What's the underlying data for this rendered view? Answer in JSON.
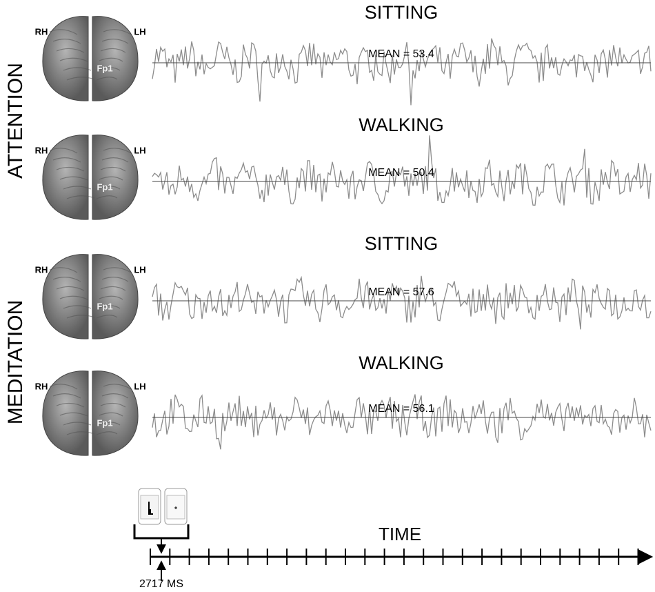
{
  "row_labels": [
    "ATTENTION",
    "MEDITATION"
  ],
  "brain": {
    "left_label": "RH",
    "right_label": "LH",
    "electrode": "Fp1"
  },
  "panels": [
    {
      "title": "SITTING",
      "mean_label": "MEAN = 53.4"
    },
    {
      "title": "WALKING",
      "mean_label": "MEAN = 50.4"
    },
    {
      "title": "SITTING",
      "mean_label": "MEAN = 57.6"
    },
    {
      "title": "WALKING",
      "mean_label": "MEAN = 56.1"
    }
  ],
  "timeline": {
    "label": "TIME",
    "start_label": "2717 MS"
  }
}
